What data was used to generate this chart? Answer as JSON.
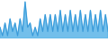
{
  "values": [
    3,
    1,
    4,
    1,
    5,
    2,
    4,
    1,
    5,
    2,
    9,
    3,
    4,
    1,
    3,
    1,
    5,
    2,
    6,
    2,
    6,
    2,
    6,
    2,
    7,
    2,
    6,
    2,
    7,
    2,
    6,
    2,
    7,
    2,
    6,
    2,
    7,
    2,
    6,
    2,
    7,
    2,
    6,
    2
  ],
  "line_color": "#3a9ad9",
  "fill_color": "#5ab4e8",
  "background_color": "#ffffff",
  "linewidth": 0.7,
  "alpha": 0.85
}
